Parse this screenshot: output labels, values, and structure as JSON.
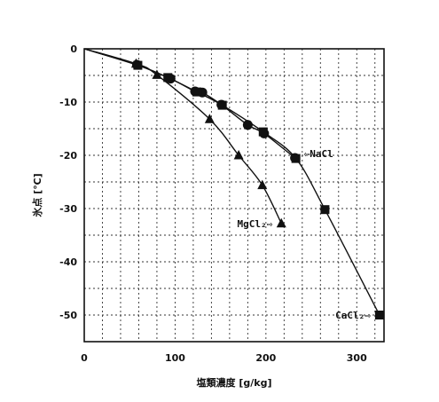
{
  "chart_data": {
    "type": "scatter",
    "xlabel": "塩類濃度 [g/kg]",
    "ylabel": "氷点 [℃]",
    "xlim": [
      0,
      330
    ],
    "ylim": [
      -55,
      0
    ],
    "x_ticks": [
      "0",
      "100",
      "200",
      "300"
    ],
    "y_ticks": [
      "0",
      "-10",
      "-20",
      "-30",
      "-40",
      "-50"
    ],
    "grid": true,
    "series": [
      {
        "name": "NaCl",
        "marker": "circle",
        "x": [
          58,
          95,
          122,
          130,
          151,
          180,
          198,
          232
        ],
        "y": [
          -3.0,
          -5.6,
          -8.0,
          -8.2,
          -10.5,
          -14.3,
          -15.9,
          -20.5
        ]
      },
      {
        "name": "MgCl₂",
        "marker": "triangle",
        "x": [
          57,
          80,
          138,
          170,
          196,
          217
        ],
        "y": [
          -2.8,
          -4.9,
          -13.2,
          -20.0,
          -25.6,
          -32.8
        ]
      },
      {
        "name": "CaCl₂",
        "marker": "square",
        "x": [
          59,
          92,
          124,
          152,
          197,
          233,
          265,
          325
        ],
        "y": [
          -3.1,
          -5.4,
          -8.1,
          -10.6,
          -15.6,
          -20.6,
          -30.2,
          -50.0
        ]
      }
    ],
    "annotations": [
      {
        "text": "⇦NaCl",
        "series": 0
      },
      {
        "text": "MgCl₂⇨",
        "series": 1
      },
      {
        "text": "CaCl₂⇨",
        "series": 2
      }
    ]
  }
}
